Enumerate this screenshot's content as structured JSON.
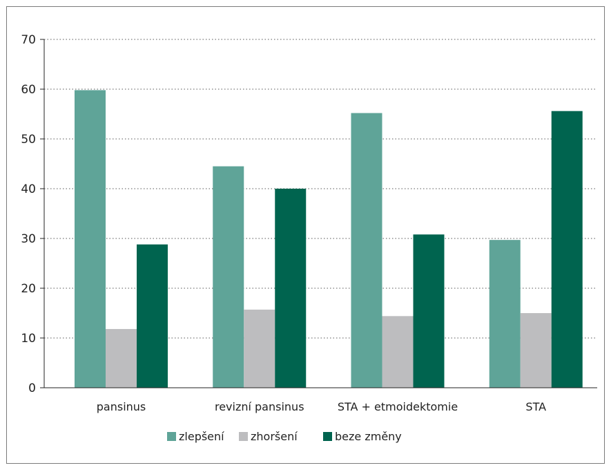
{
  "chart_data": {
    "type": "bar",
    "categories": [
      "pansinus",
      "revizní pansinus",
      "STA + etmoidektomie",
      "STA"
    ],
    "series": [
      {
        "name": "zlepšení",
        "color": "#5fa498",
        "values": [
          59.8,
          44.5,
          55.2,
          29.7
        ]
      },
      {
        "name": "zhoršení",
        "color": "#bdbdbf",
        "values": [
          11.8,
          15.7,
          14.4,
          15.0
        ]
      },
      {
        "name": "beze změny",
        "color": "#00644f",
        "values": [
          28.8,
          40.0,
          30.8,
          55.6
        ]
      }
    ],
    "title": "",
    "xlabel": "",
    "ylabel": "",
    "ylim": [
      0,
      70
    ],
    "yticks": [
      0,
      10,
      20,
      30,
      40,
      50,
      60,
      70
    ],
    "grid": true,
    "grid_style": "dotted",
    "legend_position": "bottom-center"
  }
}
